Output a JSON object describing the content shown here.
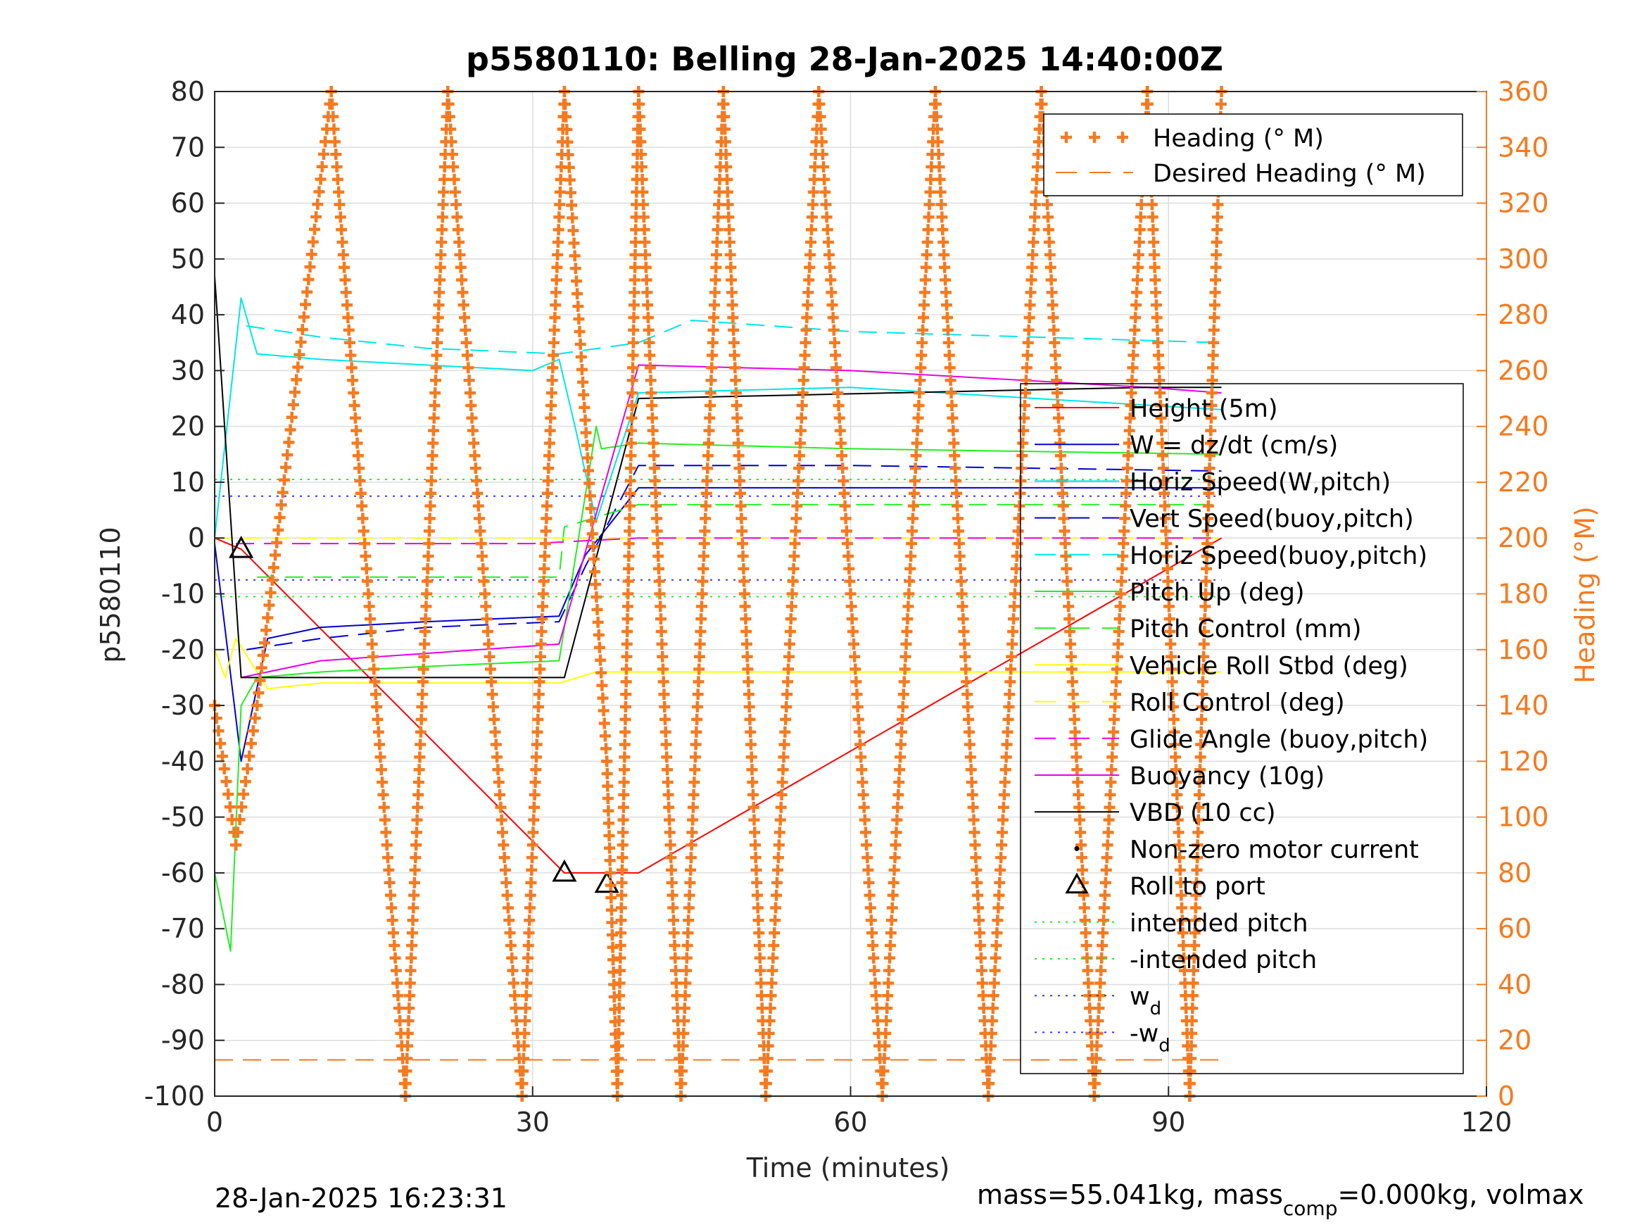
{
  "chart_data": {
    "type": "line",
    "title": "p5580110: Belling 28-Jan-2025 14:40:00Z",
    "xlabel": "Time (minutes)",
    "ylabel_left": "p5580110",
    "ylabel_right": "Heading (°M)",
    "xlim": [
      0,
      120
    ],
    "ylim_left": [
      -100,
      80
    ],
    "ylim_right": [
      0,
      360
    ],
    "xticks": [
      0,
      30,
      60,
      90,
      120
    ],
    "yticks_left": [
      80,
      70,
      60,
      50,
      40,
      30,
      20,
      10,
      0,
      -10,
      -20,
      -30,
      -40,
      -50,
      -60,
      -70,
      -80,
      -90,
      -100
    ],
    "yticks_right": [
      360,
      340,
      320,
      300,
      280,
      260,
      240,
      220,
      200,
      180,
      160,
      140,
      120,
      100,
      80,
      60,
      40,
      20,
      0
    ],
    "grid": true,
    "legend_right_axis": [
      "Heading (° M)",
      "Desired Heading (° M)"
    ],
    "legend_left_axis": [
      "Height (5m)",
      "W = dz/dt (cm/s)",
      "Horiz Speed(W,pitch)",
      "Vert Speed(buoy,pitch)",
      "Horiz Speed(buoy,pitch)",
      "Pitch Up (deg)",
      "Pitch Control (mm)",
      "Vehicle Roll Stbd (deg)",
      "Roll Control (deg)",
      "Glide Angle (buoy,pitch)",
      "Buoyancy (10g)",
      "VBD (10 cc)",
      "Non-zero motor current",
      "Roll to port",
      "intended pitch",
      "-intended pitch",
      "w_d",
      "-w_d"
    ],
    "legend_placement": "right inside",
    "footer_left": "28-Jan-2025 16:23:31",
    "footer_right": "mass=55.041kg, mass_comp=0.000kg, volmax",
    "colors": {
      "heading": "#f47a20",
      "height": "#ff0000",
      "w": "#0000cc",
      "horiz": "#00e5e5",
      "pitch": "#22ee22",
      "roll": "#ffff00",
      "glide": "#e600e6",
      "vbd": "#000000",
      "wd": "#3333ff",
      "axes": "#262626"
    },
    "series": [
      {
        "name": "Height (5m)",
        "x": [
          0,
          2.5,
          33,
          40,
          95
        ],
        "y": [
          0,
          -2,
          -60,
          -60,
          0
        ]
      },
      {
        "name": "W = dz/dt (cm/s)",
        "x": [
          0,
          2.5,
          5,
          10,
          20,
          32.5,
          35,
          40,
          60,
          95
        ],
        "y": [
          -1,
          -40,
          -18,
          -16,
          -15,
          -14,
          -3,
          9,
          9,
          9
        ]
      },
      {
        "name": "Horiz Speed(W,pitch)",
        "x": [
          0,
          2.5,
          4,
          10,
          20,
          30,
          32.5,
          34,
          36,
          40,
          60,
          95
        ],
        "y": [
          0,
          43,
          33,
          32,
          31,
          30,
          32,
          20,
          3,
          26,
          27,
          23
        ]
      },
      {
        "name": "Vert Speed(buoy,pitch)",
        "x": [
          3,
          10,
          20,
          32.5,
          35,
          40,
          60,
          95
        ],
        "y": [
          -20,
          -18,
          -16,
          -15,
          -5,
          13,
          13,
          12
        ]
      },
      {
        "name": "Horiz Speed(buoy,pitch)",
        "x": [
          3,
          10,
          20,
          32.5,
          40,
          45,
          60,
          95
        ],
        "y": [
          38,
          36,
          34,
          33,
          35,
          39,
          37,
          35
        ]
      },
      {
        "name": "Pitch Up (deg)",
        "x": [
          0,
          1.5,
          2.5,
          4,
          10,
          20,
          32.5,
          36,
          36.5,
          40,
          60,
          95
        ],
        "y": [
          -60,
          -74,
          -30,
          -25,
          -24,
          -23,
          -22,
          20,
          16,
          17,
          16,
          15
        ]
      },
      {
        "name": "Pitch Control (mm)",
        "x": [
          4,
          32.5,
          33,
          40,
          95
        ],
        "y": [
          -7,
          -7,
          2,
          6,
          6
        ]
      },
      {
        "name": "Vehicle Roll Stbd (deg)",
        "x": [
          0,
          1,
          2,
          5,
          10,
          20,
          32.5,
          36,
          40,
          60,
          95
        ],
        "y": [
          -20,
          -25,
          -18,
          -27,
          -26,
          -26,
          -26,
          -24,
          -24,
          -24,
          -24
        ]
      },
      {
        "name": "Roll Control (deg)",
        "x": [
          0,
          95
        ],
        "y": [
          0,
          0
        ]
      },
      {
        "name": "Glide Angle (buoy,pitch)",
        "x": [
          2,
          30,
          40,
          95
        ],
        "y": [
          -1,
          -1,
          0,
          0
        ]
      },
      {
        "name": "Buoyancy (10g)",
        "x": [
          2.5,
          10,
          32.5,
          40,
          60,
          88,
          95
        ],
        "y": [
          -25,
          -22,
          -19,
          31,
          30,
          27,
          26
        ]
      },
      {
        "name": "VBD (10 cc)",
        "x": [
          0,
          2.5,
          5,
          33,
          40,
          88,
          95
        ],
        "y": [
          47,
          -25,
          -25,
          -25,
          25,
          27,
          27
        ]
      },
      {
        "name": "Roll to port",
        "x": [
          2.5,
          33,
          37
        ],
        "y": [
          -2,
          -60,
          -62
        ]
      },
      {
        "name": "intended pitch",
        "x": [
          0,
          95
        ],
        "y": [
          10.5,
          10.5
        ]
      },
      {
        "name": "-intended pitch",
        "x": [
          0,
          95
        ],
        "y": [
          -10.5,
          -10.5
        ]
      },
      {
        "name": "w_d",
        "x": [
          0,
          95
        ],
        "y": [
          7.5,
          7.5
        ]
      },
      {
        "name": "-w_d",
        "x": [
          0,
          95
        ],
        "y": [
          -7.5,
          -7.5
        ]
      },
      {
        "name": "Desired Heading (° M)",
        "axis": "right",
        "x": [
          0,
          95
        ],
        "y": [
          13,
          13
        ]
      },
      {
        "name": "Heading (° M)",
        "axis": "right",
        "x": [
          0,
          2,
          4,
          11,
          18,
          22,
          29,
          33,
          37,
          38,
          40,
          44,
          48,
          52,
          57,
          63,
          68,
          73,
          78,
          83,
          88,
          92,
          95
        ],
        "y": [
          140,
          90,
          140,
          360,
          0,
          360,
          0,
          360,
          120,
          0,
          360,
          0,
          360,
          0,
          360,
          0,
          360,
          0,
          360,
          0,
          360,
          0,
          360
        ]
      }
    ]
  }
}
